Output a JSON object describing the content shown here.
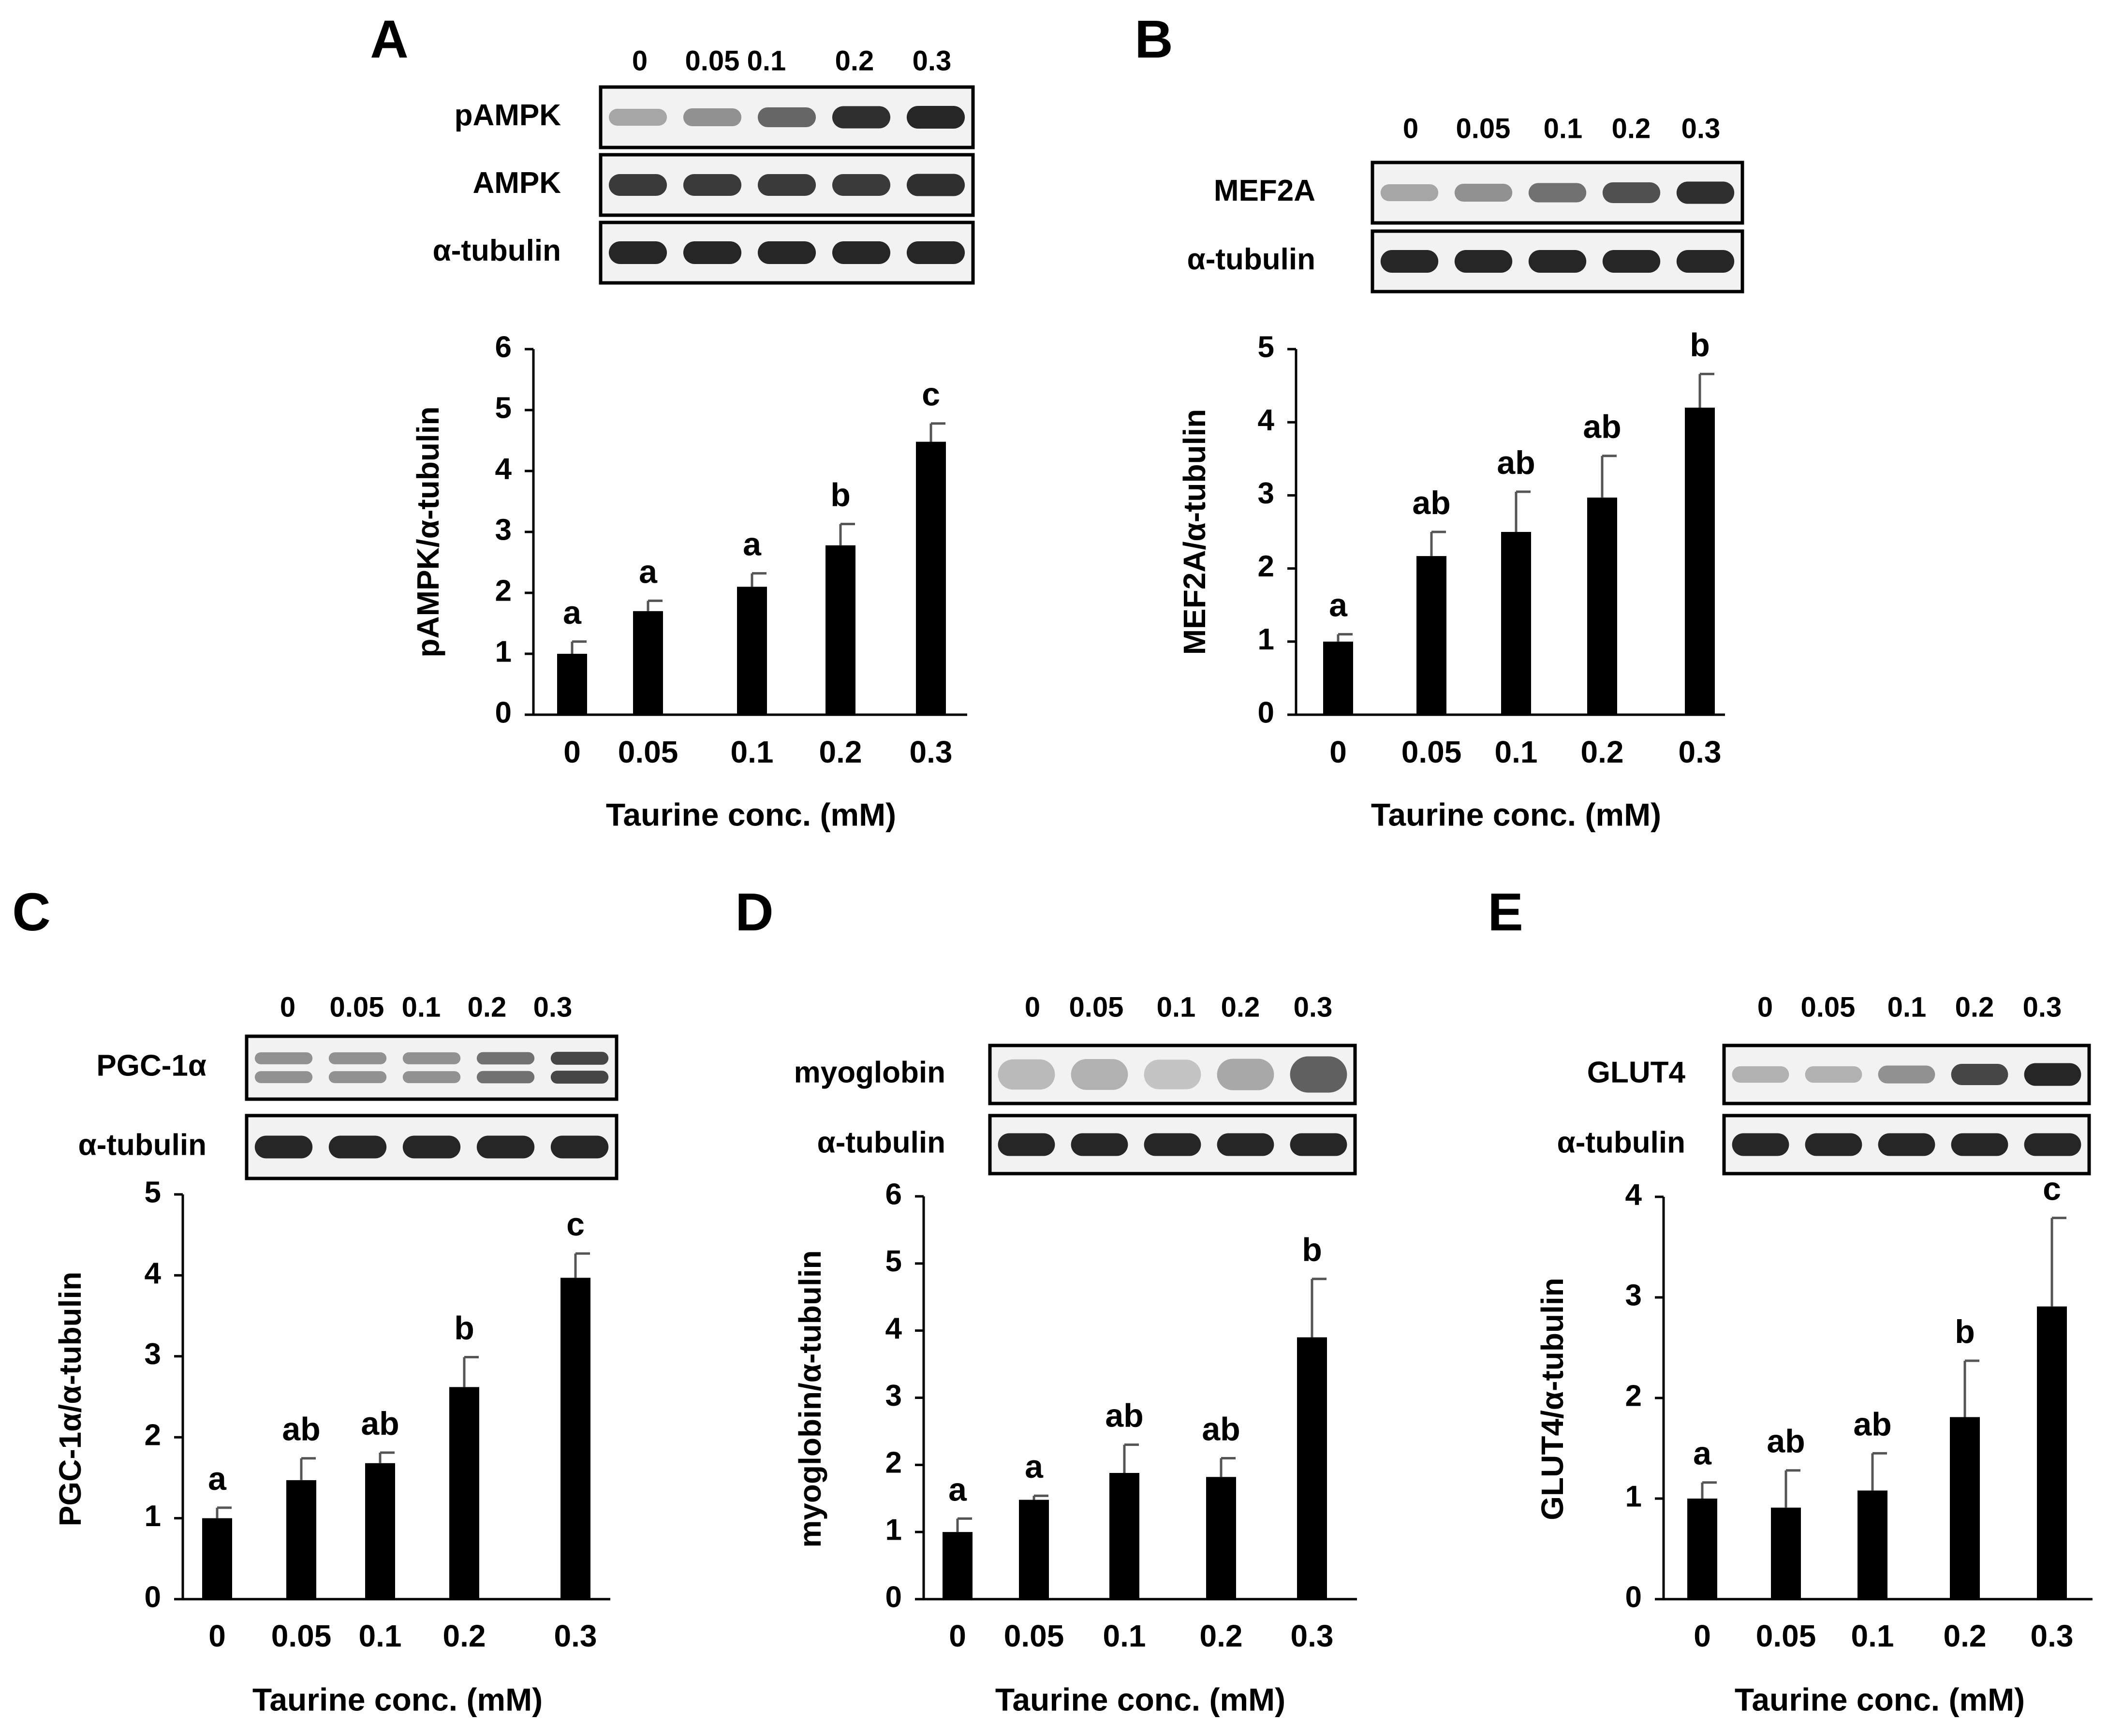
{
  "figure": {
    "x_axis_title": "Taurine conc. (mM)",
    "colors": {
      "bar": "#000000",
      "error_bar": "#555555",
      "axis": "#000000",
      "band": "#1a1a1a",
      "blot_bg": "#f2f2f2"
    }
  },
  "chart_data": [
    {
      "panel": "A",
      "type": "bar",
      "title": "",
      "categories": [
        "0",
        "0.05",
        "0.1",
        "0.2",
        "0.3"
      ],
      "values": [
        1.0,
        1.7,
        2.1,
        2.78,
        4.48
      ],
      "errors": [
        0.2,
        0.17,
        0.22,
        0.35,
        0.3
      ],
      "significance": [
        "a",
        "a",
        "a",
        "b",
        "c"
      ],
      "ylabel": "pAMPK/α-tubulin",
      "xlabel": "Taurine conc. (mM)",
      "ylim": [
        0,
        6
      ],
      "yticks": [
        "0",
        "1",
        "2",
        "3",
        "4",
        "5",
        "6"
      ],
      "blot": {
        "lane_labels": [
          "0",
          "0.05",
          "0.1",
          "0.2",
          "0.3"
        ],
        "rows": [
          {
            "label": "pAMPK",
            "intensities": [
              0.35,
              0.45,
              0.65,
              0.9,
              0.95
            ],
            "bands": 1
          },
          {
            "label": "AMPK",
            "intensities": [
              0.85,
              0.85,
              0.85,
              0.85,
              0.9
            ],
            "bands": 1
          },
          {
            "label": "α-tubulin",
            "intensities": [
              0.95,
              0.95,
              0.95,
              0.95,
              0.95
            ],
            "bands": 1
          }
        ]
      }
    },
    {
      "panel": "B",
      "type": "bar",
      "title": "",
      "categories": [
        "0",
        "0.05",
        "0.1",
        "0.2",
        "0.3"
      ],
      "values": [
        1.0,
        2.17,
        2.5,
        2.97,
        4.2
      ],
      "errors": [
        0.1,
        0.33,
        0.55,
        0.57,
        0.46
      ],
      "significance": [
        "a",
        "ab",
        "ab",
        "ab",
        "b"
      ],
      "ylabel": "MEF2A/α-tubulin",
      "xlabel": "Taurine conc. (mM)",
      "ylim": [
        0,
        5
      ],
      "yticks": [
        "0",
        "1",
        "2",
        "3",
        "4",
        "5"
      ],
      "blot": {
        "lane_labels": [
          "0",
          "0.05",
          "0.1",
          "0.2",
          "0.3"
        ],
        "rows": [
          {
            "label": "MEF2A",
            "intensities": [
              0.35,
              0.45,
              0.6,
              0.75,
              0.9
            ],
            "bands": 1
          },
          {
            "label": "α-tubulin",
            "intensities": [
              0.95,
              0.95,
              0.95,
              0.95,
              0.95
            ],
            "bands": 1
          }
        ]
      }
    },
    {
      "panel": "C",
      "type": "bar",
      "title": "",
      "categories": [
        "0",
        "0.05",
        "0.1",
        "0.2",
        "0.3"
      ],
      "values": [
        1.0,
        1.47,
        1.68,
        2.62,
        3.97
      ],
      "errors": [
        0.13,
        0.27,
        0.13,
        0.37,
        0.3
      ],
      "significance": [
        "a",
        "ab",
        "ab",
        "b",
        "c"
      ],
      "ylabel": "PGC-1α/α-tubulin",
      "xlabel": "Taurine conc. (mM)",
      "ylim": [
        0,
        5
      ],
      "yticks": [
        "0",
        "1",
        "2",
        "3",
        "4",
        "5"
      ],
      "blot": {
        "lane_labels": [
          "0",
          "0.05",
          "0.1",
          "0.2",
          "0.3"
        ],
        "rows": [
          {
            "label": "PGC-1α",
            "intensities": [
              0.45,
              0.45,
              0.45,
              0.6,
              0.8
            ],
            "bands": 2
          },
          {
            "label": "α-tubulin",
            "intensities": [
              0.95,
              0.95,
              0.95,
              0.95,
              0.95
            ],
            "bands": 1
          }
        ]
      }
    },
    {
      "panel": "D",
      "type": "bar",
      "title": "",
      "categories": [
        "0",
        "0.05",
        "0.1",
        "0.2",
        "0.3"
      ],
      "values": [
        1.0,
        1.48,
        1.88,
        1.82,
        3.9
      ],
      "errors": [
        0.2,
        0.06,
        0.42,
        0.28,
        0.87
      ],
      "significance": [
        "a",
        "a",
        "ab",
        "ab",
        "b"
      ],
      "ylabel": "myoglobin/α-tubulin",
      "xlabel": "Taurine conc. (mM)",
      "ylim": [
        0,
        6
      ],
      "yticks": [
        "0",
        "1",
        "2",
        "3",
        "4",
        "5",
        "6"
      ],
      "blot": {
        "lane_labels": [
          "0",
          "0.05",
          "0.1",
          "0.2",
          "0.3"
        ],
        "rows": [
          {
            "label": "myoglobin",
            "intensities": [
              0.3,
              0.35,
              0.25,
              0.4,
              0.8
            ],
            "bands": 1,
            "diffuse": true
          },
          {
            "label": "α-tubulin",
            "intensities": [
              0.95,
              0.95,
              0.95,
              0.95,
              0.95
            ],
            "bands": 1
          }
        ]
      }
    },
    {
      "panel": "E",
      "type": "bar",
      "title": "",
      "categories": [
        "0",
        "0.05",
        "0.1",
        "0.2",
        "0.3"
      ],
      "values": [
        1.0,
        0.91,
        1.08,
        1.81,
        2.91
      ],
      "errors": [
        0.16,
        0.37,
        0.37,
        0.56,
        0.88
      ],
      "significance": [
        "a",
        "ab",
        "ab",
        "b",
        "c"
      ],
      "ylabel": "GLUT4/α-tubulin",
      "xlabel": "Taurine conc. (mM)",
      "ylim": [
        0,
        4
      ],
      "yticks": [
        "0",
        "1",
        "2",
        "3",
        "4"
      ],
      "blot": {
        "lane_labels": [
          "0",
          "0.05",
          "0.1",
          "0.2",
          "0.3"
        ],
        "rows": [
          {
            "label": "GLUT4",
            "intensities": [
              0.3,
              0.3,
              0.45,
              0.8,
              0.95
            ],
            "bands": 1
          },
          {
            "label": "α-tubulin",
            "intensities": [
              0.95,
              0.95,
              0.95,
              0.95,
              0.95
            ],
            "bands": 1
          }
        ]
      }
    }
  ]
}
